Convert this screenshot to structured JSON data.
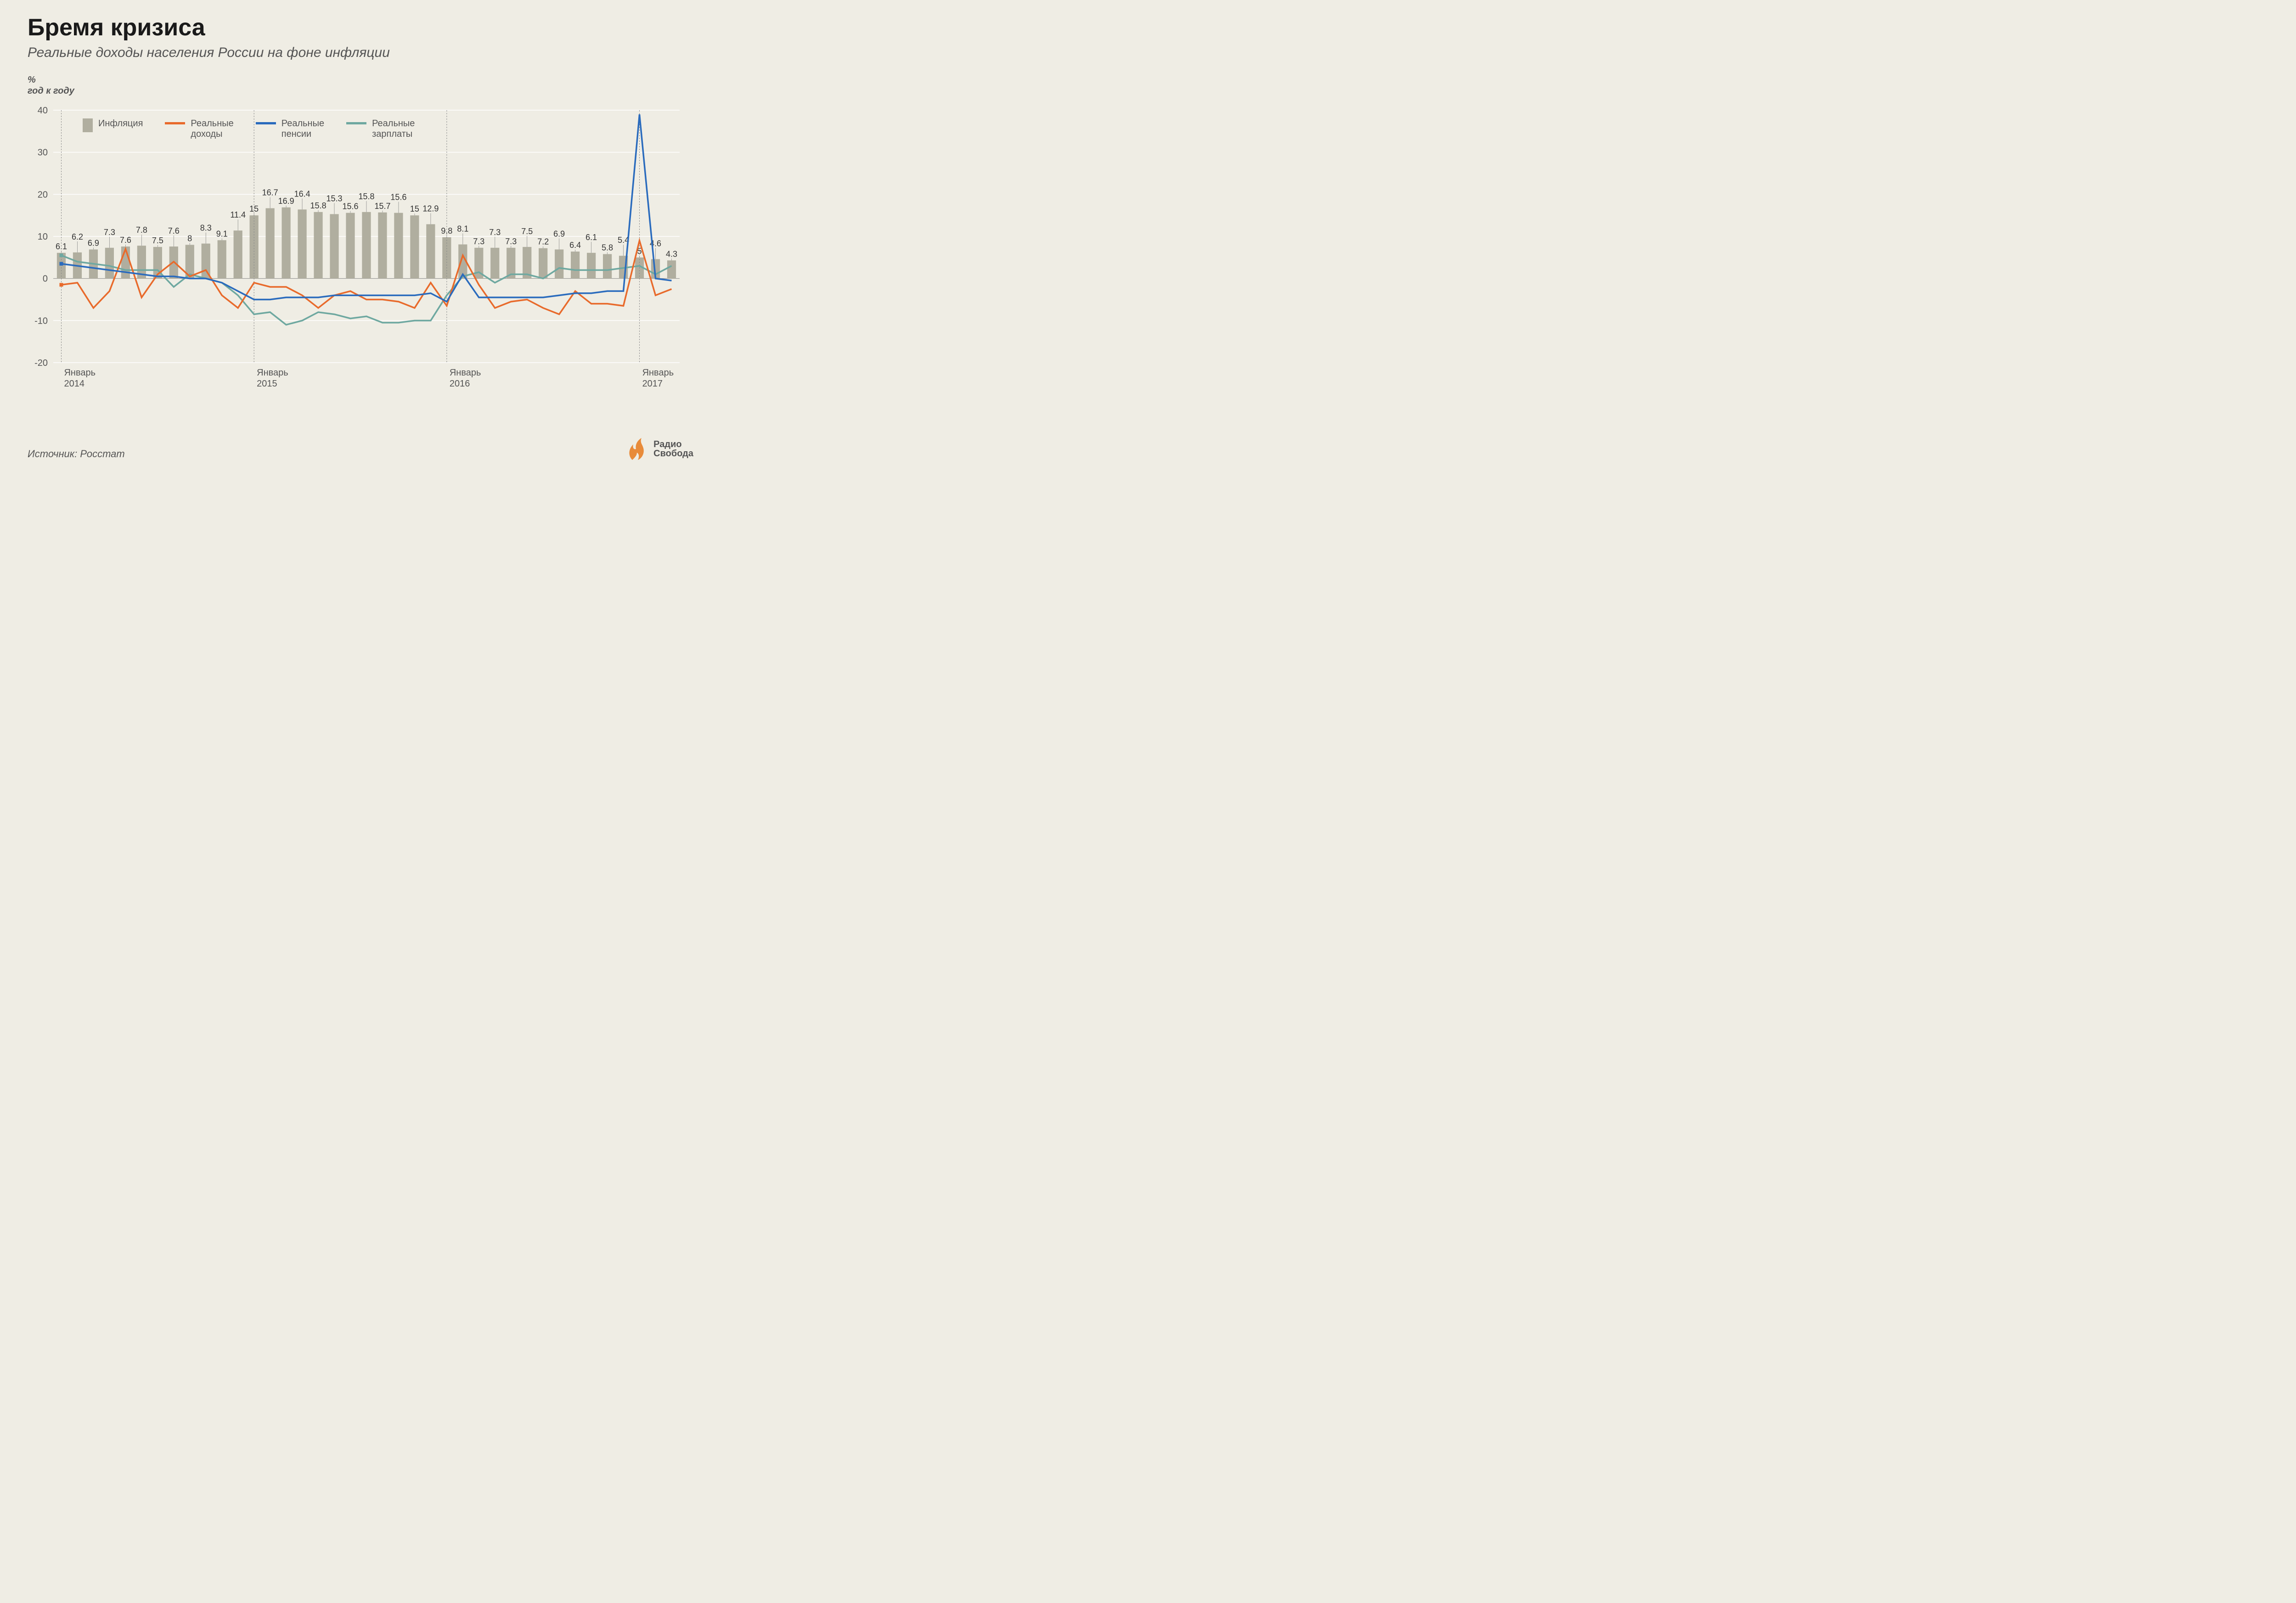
{
  "title": "Бремя кризиса",
  "subtitle": "Реальные доходы населения России на фоне инфляции",
  "y_axis_label_1": "%",
  "y_axis_label_2": "год к году",
  "source": "Источник: Росстат",
  "brand_line1": "Радио",
  "brand_line2": "Свобода",
  "chart": {
    "type": "bar+line",
    "background_color": "#efede4",
    "grid_color": "#ffffff",
    "text_color": "#555555",
    "bar_color": "#b0ae9f",
    "bar_label_fontsize": 18,
    "axis_fontsize": 20,
    "title_fontsize": 52,
    "subtitle_fontsize": 30,
    "line_width": 3.5,
    "bar_width_ratio": 0.55,
    "ylim": [
      -20,
      40
    ],
    "ytick_step": 10,
    "yticks": [
      -20,
      -10,
      0,
      10,
      20,
      30,
      40
    ],
    "n_points": 39,
    "x_major": [
      {
        "index": 0,
        "label_line1": "Январь",
        "label_line2": "2014"
      },
      {
        "index": 12,
        "label_line1": "Январь",
        "label_line2": "2015"
      },
      {
        "index": 24,
        "label_line1": "Январь",
        "label_line2": "2016"
      },
      {
        "index": 36,
        "label_line1": "Январь",
        "label_line2": "2017"
      }
    ],
    "legend": [
      {
        "kind": "bar",
        "label": "Инфляция",
        "color": "#b0ae9f"
      },
      {
        "kind": "line",
        "label": "Реальные\nдоходы",
        "color": "#e86a2b"
      },
      {
        "kind": "line",
        "label": "Реальные\nпенсии",
        "color": "#2a6bbd"
      },
      {
        "kind": "line",
        "label": "Реальные\nзарплаты",
        "color": "#6ea8a0"
      }
    ],
    "inflation": [
      6.1,
      6.2,
      6.9,
      7.3,
      7.6,
      7.8,
      7.5,
      7.6,
      8,
      8.3,
      9.1,
      11.4,
      15,
      16.7,
      16.9,
      16.4,
      15.8,
      15.3,
      15.6,
      15.8,
      15.7,
      15.6,
      15,
      12.9,
      9.8,
      8.1,
      7.3,
      7.3,
      7.3,
      7.5,
      7.2,
      6.9,
      6.4,
      6.1,
      5.8,
      5.4,
      5,
      4.6,
      4.3
    ],
    "real_income": {
      "color": "#e86a2b",
      "values": [
        -1.5,
        -1,
        -7,
        -3,
        7,
        -4.5,
        1,
        4,
        0.5,
        2,
        -4,
        -7,
        -1,
        -2,
        -2,
        -4,
        -7,
        -4,
        -3,
        -5,
        -5,
        -5.5,
        -7,
        -1,
        -6.5,
        5.5,
        -1.5,
        -7,
        -5.5,
        -5,
        -7,
        -8.5,
        -3,
        -6,
        -6,
        -6.5,
        9,
        -4,
        -2.5
      ]
    },
    "real_pensions": {
      "color": "#2a6bbd",
      "values": [
        3.5,
        3,
        2.5,
        2,
        1.5,
        1,
        0.5,
        0.5,
        0,
        0,
        -1,
        -3,
        -5,
        -5,
        -4.5,
        -4.5,
        -4.5,
        -4,
        -4,
        -4,
        -4,
        -4,
        -4,
        -3.5,
        -5.5,
        1,
        -4.5,
        -4.5,
        -4.5,
        -4.5,
        -4.5,
        -4,
        -3.5,
        -3.5,
        -3,
        -3,
        39,
        0,
        -0.5
      ]
    },
    "real_wages": {
      "color": "#6ea8a0",
      "values": [
        5.5,
        4,
        3.5,
        3,
        2,
        2,
        2,
        -2,
        1,
        0,
        -1,
        -4,
        -8.5,
        -8,
        -11,
        -10,
        -8,
        -8.5,
        -9.5,
        -9,
        -10.5,
        -10.5,
        -10,
        -10,
        -4,
        0.5,
        1.5,
        -1,
        1,
        1,
        0,
        2.5,
        2,
        2,
        2,
        2.5,
        3,
        1,
        3
      ]
    }
  }
}
